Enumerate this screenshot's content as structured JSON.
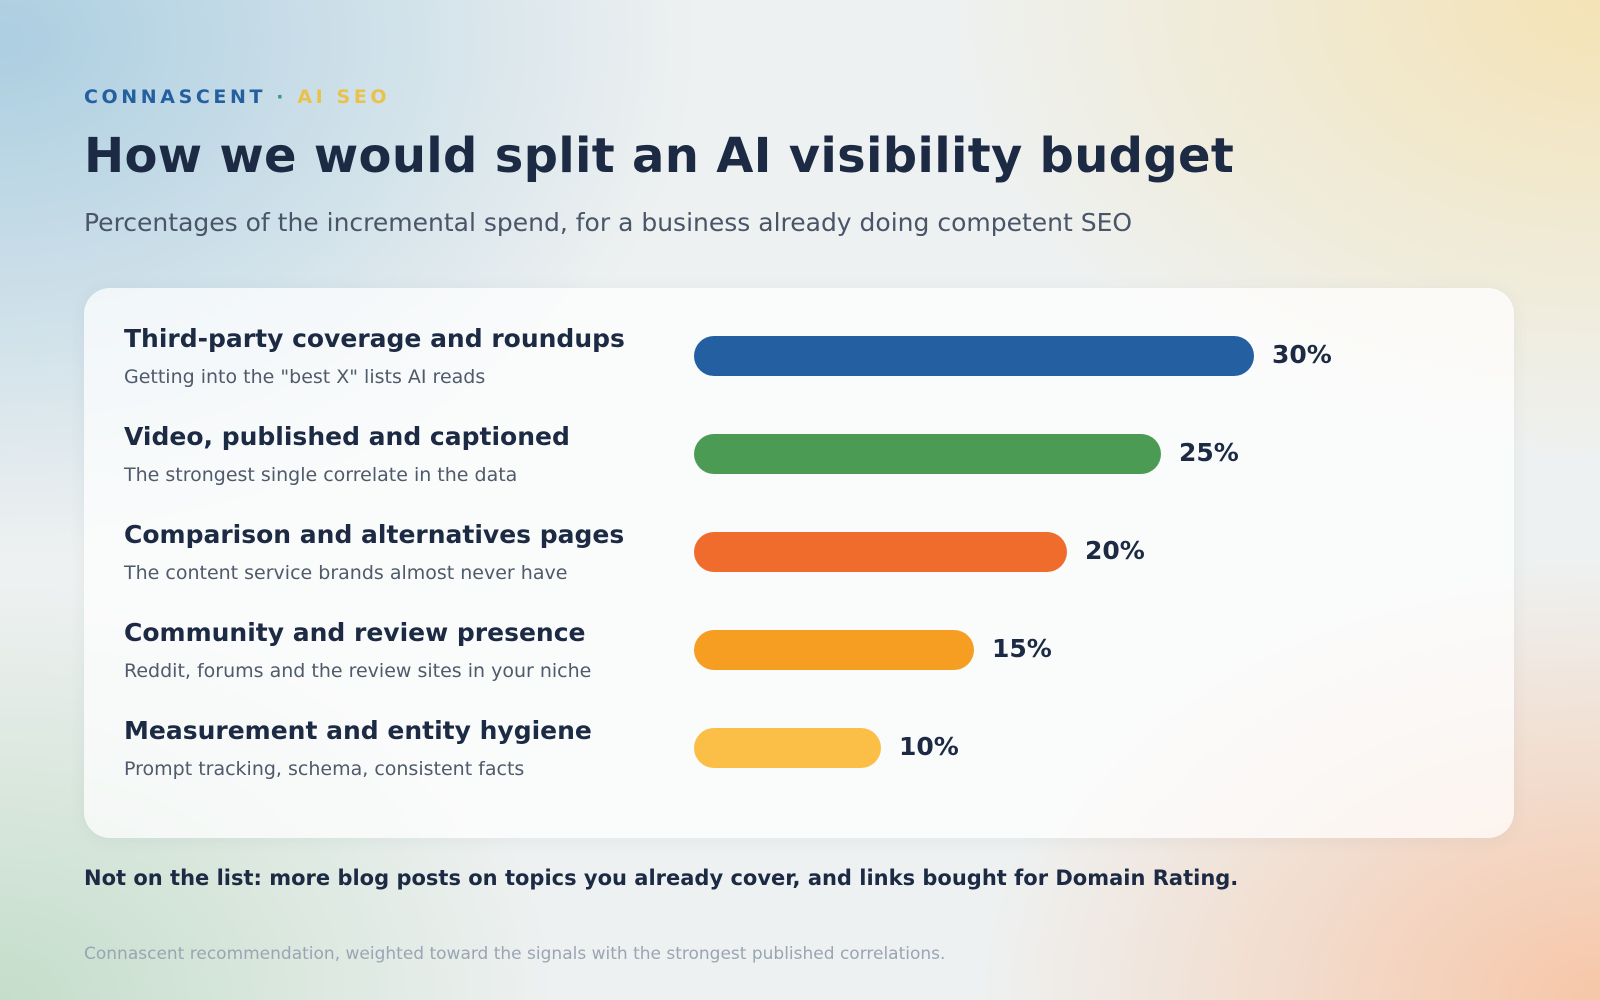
{
  "header": {
    "brand": "CONNASCENT",
    "separator": "·",
    "topic": "AI SEO"
  },
  "chart_data": {
    "type": "bar",
    "orientation": "horizontal",
    "title": "How we would split an AI visibility budget",
    "subtitle": "Percentages of the incremental spend, for a business already doing competent SEO",
    "categories": [
      "Third-party coverage and roundups",
      "Video, published and captioned",
      "Comparison and alternatives pages",
      "Community and review presence",
      "Measurement and entity hygiene"
    ],
    "descriptions": [
      "Getting into the \"best X\" lists AI reads",
      "The strongest single correlate in the data",
      "The content service brands almost never have",
      "Reddit, forums and the review sites in your niche",
      "Prompt tracking, schema, consistent facts"
    ],
    "values": [
      30,
      25,
      20,
      15,
      10
    ],
    "value_labels": [
      "30%",
      "25%",
      "20%",
      "15%",
      "10%"
    ],
    "colors": [
      "#245fa1",
      "#4b9b55",
      "#ef6c2c",
      "#f59e22",
      "#fbbf47"
    ],
    "unit": "%",
    "xlim": [
      0,
      30
    ],
    "grid": false,
    "legend": "none"
  },
  "footnote": "Not on the list: more blog posts on topics you already cover, and links bought for Domain Rating.",
  "source": "Connascent recommendation, weighted toward the signals with the strongest published correlations."
}
